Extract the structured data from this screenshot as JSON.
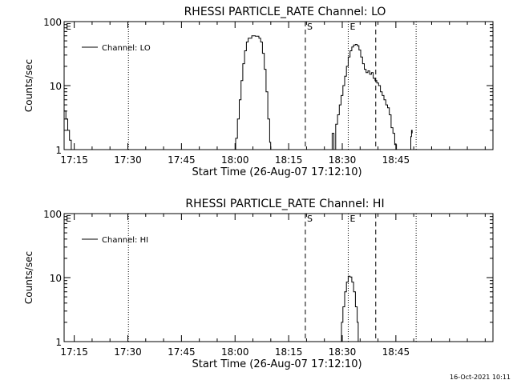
{
  "footer": {
    "timestamp": "16-Oct-2021 10:11"
  },
  "chart_data": [
    {
      "type": "line",
      "title": "RHESSI PARTICLE_RATE Channel: LO",
      "xlabel": "Start Time (26-Aug-07 17:12:10)",
      "ylabel": "Counts/sec",
      "y_scale": "log",
      "ylim": [
        1,
        100
      ],
      "y_ticks": [
        {
          "v": 1,
          "label": "1"
        },
        {
          "v": 10,
          "label": "10"
        },
        {
          "v": 100,
          "label": "100"
        }
      ],
      "xlim_min": [
        0,
        120
      ],
      "x_ticks": [
        {
          "v": 2.83,
          "label": "17:15"
        },
        {
          "v": 17.83,
          "label": "17:30"
        },
        {
          "v": 32.83,
          "label": "17:45"
        },
        {
          "v": 47.83,
          "label": "18:00"
        },
        {
          "v": 62.83,
          "label": "18:15"
        },
        {
          "v": 77.83,
          "label": "18:30"
        },
        {
          "v": 92.83,
          "label": "18:45"
        }
      ],
      "vlines": [
        {
          "x": 0,
          "style": "dotted",
          "label": "E"
        },
        {
          "x": 18.0,
          "style": "dotted",
          "label": ""
        },
        {
          "x": 67.5,
          "style": "dashed",
          "label": "S"
        },
        {
          "x": 79.5,
          "style": "dotted",
          "label": "E"
        },
        {
          "x": 87.2,
          "style": "dashed",
          "label": ""
        },
        {
          "x": 98.5,
          "style": "dotted",
          "label": ""
        }
      ],
      "legend": {
        "position": "top-left",
        "entries": [
          "Channel: LO"
        ]
      },
      "series": [
        {
          "name": "Channel: LO",
          "segments": [
            [
              [
                0,
                4
              ],
              [
                0.5,
                3
              ],
              [
                1,
                2
              ],
              [
                1.5,
                1.4
              ],
              [
                2,
                1
              ]
            ],
            [
              [
                47.5,
                1
              ],
              [
                48,
                1.5
              ],
              [
                48.5,
                3
              ],
              [
                49,
                6
              ],
              [
                49.5,
                12
              ],
              [
                50,
                22
              ],
              [
                50.5,
                35
              ],
              [
                51,
                48
              ],
              [
                51.5,
                55
              ],
              [
                52.5,
                60
              ],
              [
                53.5,
                59
              ],
              [
                54.5,
                55
              ],
              [
                55,
                48
              ],
              [
                55.5,
                32
              ],
              [
                56,
                18
              ],
              [
                56.5,
                8
              ],
              [
                57,
                3
              ],
              [
                57.5,
                1.3
              ],
              [
                57.8,
                1
              ]
            ],
            [
              [
                74.5,
                1
              ],
              [
                75,
                1.8
              ],
              [
                75.5,
                1
              ],
              [
                76,
                2.5
              ],
              [
                76.5,
                3.5
              ],
              [
                77,
                5
              ],
              [
                77.5,
                7
              ],
              [
                78,
                10
              ],
              [
                78.5,
                14
              ],
              [
                79,
                20
              ],
              [
                79.5,
                28
              ],
              [
                80,
                35
              ],
              [
                80.5,
                40
              ],
              [
                81,
                43
              ],
              [
                81.5,
                44
              ],
              [
                82,
                42
              ],
              [
                82.5,
                36
              ],
              [
                83,
                28
              ],
              [
                83.5,
                22
              ],
              [
                84,
                18
              ],
              [
                84.5,
                16
              ],
              [
                85,
                17
              ],
              [
                85.5,
                15
              ],
              [
                86,
                16
              ],
              [
                86.5,
                13
              ],
              [
                87,
                12
              ],
              [
                87.5,
                11
              ],
              [
                88,
                10
              ],
              [
                88.5,
                8
              ],
              [
                89,
                7
              ],
              [
                89.5,
                6
              ],
              [
                90,
                5
              ],
              [
                90.5,
                4.5
              ],
              [
                91,
                3.5
              ],
              [
                91.5,
                2.2
              ],
              [
                92,
                1.8
              ],
              [
                92.5,
                1.2
              ],
              [
                93,
                1
              ]
            ],
            [
              [
                96.8,
                1
              ],
              [
                97,
                1.6
              ],
              [
                97.2,
                2
              ],
              [
                97.4,
                1.8
              ]
            ]
          ]
        }
      ]
    },
    {
      "type": "line",
      "title": "RHESSI PARTICLE_RATE Channel: HI",
      "xlabel": "Start Time (26-Aug-07 17:12:10)",
      "ylabel": "Counts/sec",
      "y_scale": "log",
      "ylim": [
        1,
        100
      ],
      "y_ticks": [
        {
          "v": 1,
          "label": "1"
        },
        {
          "v": 10,
          "label": "10"
        },
        {
          "v": 100,
          "label": "100"
        }
      ],
      "xlim_min": [
        0,
        120
      ],
      "x_ticks": [
        {
          "v": 2.83,
          "label": "17:15"
        },
        {
          "v": 17.83,
          "label": "17:30"
        },
        {
          "v": 32.83,
          "label": "17:45"
        },
        {
          "v": 47.83,
          "label": "18:00"
        },
        {
          "v": 62.83,
          "label": "18:15"
        },
        {
          "v": 77.83,
          "label": "18:30"
        },
        {
          "v": 92.83,
          "label": "18:45"
        }
      ],
      "vlines": [
        {
          "x": 0,
          "style": "dotted",
          "label": "E"
        },
        {
          "x": 18.0,
          "style": "dotted",
          "label": ""
        },
        {
          "x": 67.5,
          "style": "dashed",
          "label": "S"
        },
        {
          "x": 79.5,
          "style": "dotted",
          "label": "E"
        },
        {
          "x": 87.2,
          "style": "dashed",
          "label": ""
        },
        {
          "x": 98.5,
          "style": "dotted",
          "label": ""
        }
      ],
      "legend": {
        "position": "top-left",
        "entries": [
          "Channel: HI"
        ]
      },
      "series": [
        {
          "name": "Channel: HI",
          "segments": [
            [
              [
                77.3,
                1
              ],
              [
                77.6,
                2
              ],
              [
                78,
                3.5
              ],
              [
                78.5,
                6
              ],
              [
                79,
                8.5
              ],
              [
                79.5,
                10.5
              ],
              [
                80,
                10.2
              ],
              [
                80.5,
                8.5
              ],
              [
                81,
                6
              ],
              [
                81.5,
                3.5
              ],
              [
                82,
                2
              ],
              [
                82.3,
                1
              ]
            ]
          ]
        }
      ]
    }
  ]
}
